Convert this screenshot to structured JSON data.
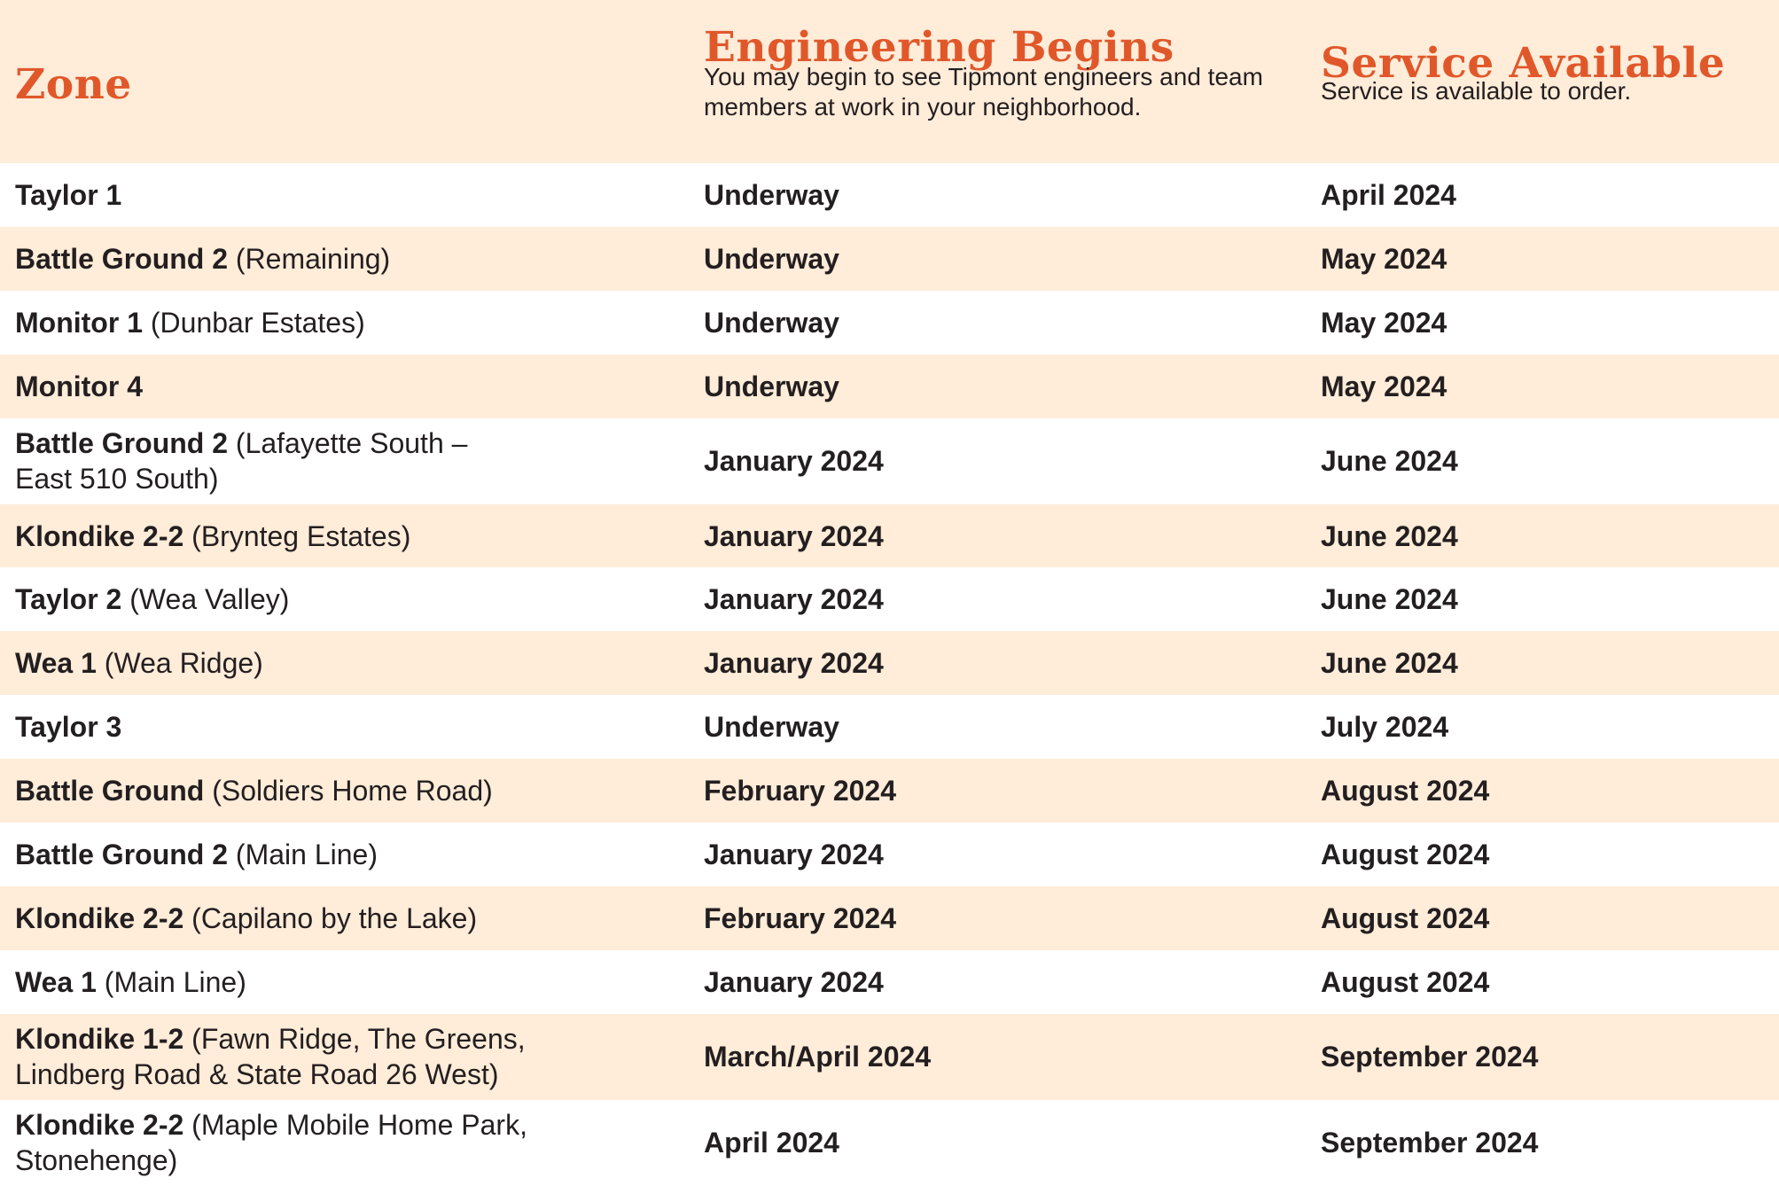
{
  "header": {
    "zone_title": "Zone",
    "engineering_title": "Engineering Begins",
    "engineering_sub": "You may begin to see Tipmont engineers and team members at work in your neighborhood.",
    "service_title": "Service Available",
    "service_sub": "Service is available to order."
  },
  "colors": {
    "accent": "#e0582a",
    "band": "#ffecd9",
    "text": "#231f20"
  },
  "rows": [
    {
      "zone": "Taylor 1",
      "detail": "",
      "engineering": "Underway",
      "service": "April 2024"
    },
    {
      "zone": "Battle Ground 2",
      "detail": "(Remaining)",
      "engineering": "Underway",
      "service": "May 2024"
    },
    {
      "zone": "Monitor 1",
      "detail": "(Dunbar Estates)",
      "engineering": "Underway",
      "service": "May 2024"
    },
    {
      "zone": "Monitor 4",
      "detail": "",
      "engineering": "Underway",
      "service": "May 2024"
    },
    {
      "zone": "Battle Ground 2",
      "detail": "(Lafayette South – East 510 South)",
      "engineering": "January 2024",
      "service": "June 2024"
    },
    {
      "zone": "Klondike 2-2",
      "detail": "(Brynteg Estates)",
      "engineering": "January 2024",
      "service": "June 2024"
    },
    {
      "zone": "Taylor 2",
      "detail": "(Wea Valley)",
      "engineering": "January 2024",
      "service": "June 2024"
    },
    {
      "zone": "Wea 1",
      "detail": "(Wea Ridge)",
      "engineering": "January 2024",
      "service": "June 2024"
    },
    {
      "zone": "Taylor 3",
      "detail": "",
      "engineering": "Underway",
      "service": "July 2024"
    },
    {
      "zone": "Battle Ground",
      "detail": "(Soldiers Home Road)",
      "engineering": "February 2024",
      "service": "August 2024"
    },
    {
      "zone": "Battle Ground 2",
      "detail": "(Main Line)",
      "engineering": "January 2024",
      "service": "August 2024"
    },
    {
      "zone": "Klondike 2-2",
      "detail": "(Capilano by the Lake)",
      "engineering": "February 2024",
      "service": "August 2024"
    },
    {
      "zone": "Wea 1",
      "detail": "(Main Line)",
      "engineering": "January 2024",
      "service": "August 2024"
    },
    {
      "zone": "Klondike 1-2",
      "detail": "(Fawn Ridge, The Greens, Lindberg Road & State Road 26 West)",
      "engineering": "March/April 2024",
      "service": "September 2024"
    },
    {
      "zone": "Klondike 2-2",
      "detail": "(Maple Mobile Home Park, Stonehenge)",
      "engineering": "April 2024",
      "service": "September 2024"
    }
  ]
}
